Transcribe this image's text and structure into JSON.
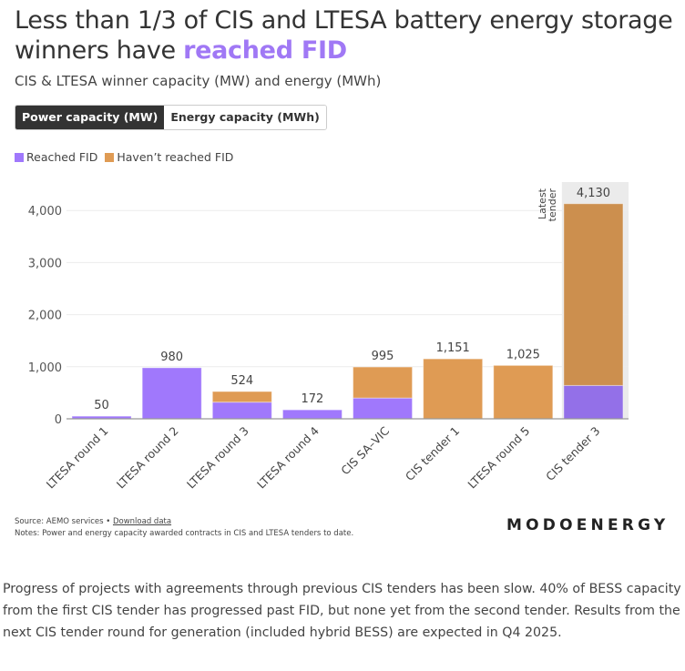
{
  "header": {
    "title_prefix": "Less than 1/3 of CIS and LTESA battery energy storage winners have ",
    "title_highlight": "reached FID",
    "subtitle": "CIS & LTESA winner capacity (MW) and energy (MWh)"
  },
  "toggle": {
    "options": [
      {
        "label": "Power capacity (MW)",
        "active": true
      },
      {
        "label": "Energy capacity (MWh)",
        "active": false
      }
    ]
  },
  "colors": {
    "reached": "#a078fc",
    "not_reached": "#df9b54",
    "highlight_bg": "#ebebeb",
    "title_accent": "#a078f5"
  },
  "chart_data": {
    "type": "bar",
    "stacked": true,
    "title": "",
    "xlabel": "",
    "ylabel": "",
    "ylim": [
      0,
      4500
    ],
    "yticks": [
      0,
      1000,
      2000,
      3000,
      4000
    ],
    "ytick_labels": [
      "0",
      "1,000",
      "2,000",
      "3,000",
      "4,000"
    ],
    "grid": true,
    "legend_position": "top-left",
    "categories": [
      "LTESA round 1",
      "LTESA round 2",
      "LTESA round 3",
      "LTESA round 4",
      "CIS SA–VIC",
      "CIS tender 1",
      "LTESA round 5",
      "CIS tender 3"
    ],
    "series": [
      {
        "name": "Reached FID",
        "values": [
          50,
          980,
          320,
          172,
          400,
          0,
          0,
          640
        ]
      },
      {
        "name": "Haven’t reached FID",
        "values": [
          0,
          0,
          204,
          0,
          595,
          1151,
          1025,
          3490
        ]
      }
    ],
    "totals": [
      50,
      980,
      524,
      172,
      995,
      1151,
      1025,
      4130
    ],
    "total_labels": [
      "50",
      "980",
      "524",
      "172",
      "995",
      "1,151",
      "1,025",
      "4,130"
    ],
    "highlight": {
      "category": "CIS tender 3",
      "annotation": [
        "Latest",
        "tender"
      ]
    }
  },
  "footer": {
    "source_prefix": "Source: AEMO services • ",
    "download_link": "Download data",
    "notes": "Notes: Power and energy capacity awarded contracts in CIS and LTESA tenders to date.",
    "brand": "MODOENERGY"
  },
  "body_text": "Progress of projects with agreements through previous CIS tenders has been slow. 40% of BESS capacity from the first CIS tender has progressed past FID, but none yet from the second tender. Results from the next CIS tender round for generation (included hybrid BESS) are expected in Q4 2025."
}
